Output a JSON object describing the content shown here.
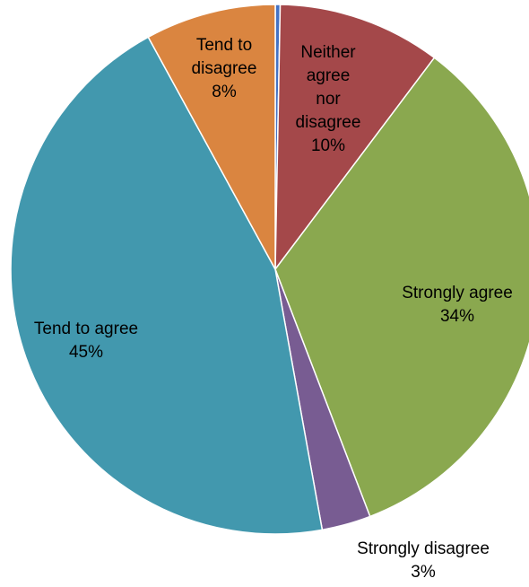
{
  "chart_data": {
    "type": "pie",
    "title": "",
    "start_angle_deg": 0,
    "direction": "clockwise",
    "legend": "none",
    "slices": [
      {
        "label": "",
        "value": 0.3,
        "percent_label": "",
        "color": "#4472C4"
      },
      {
        "label": "Neither agree nor disagree",
        "label_lines": [
          "Neither",
          "agree",
          "nor",
          "disagree"
        ],
        "value": 10,
        "percent_label": "10%",
        "color": "#A4484A"
      },
      {
        "label": "Strongly agree",
        "label_lines": [
          "Strongly agree"
        ],
        "value": 34,
        "percent_label": "34%",
        "color": "#8AA84F"
      },
      {
        "label": "Strongly disagree",
        "label_lines": [
          "Strongly disagree"
        ],
        "value": 3,
        "percent_label": "3%",
        "color": "#785C92"
      },
      {
        "label": "Tend to agree",
        "label_lines": [
          "Tend to agree"
        ],
        "value": 45,
        "percent_label": "45%",
        "color": "#4298AE"
      },
      {
        "label": "Tend to disagree",
        "label_lines": [
          "Tend to",
          "disagree"
        ],
        "value": 8,
        "percent_label": "8%",
        "color": "#DA8540"
      }
    ]
  }
}
